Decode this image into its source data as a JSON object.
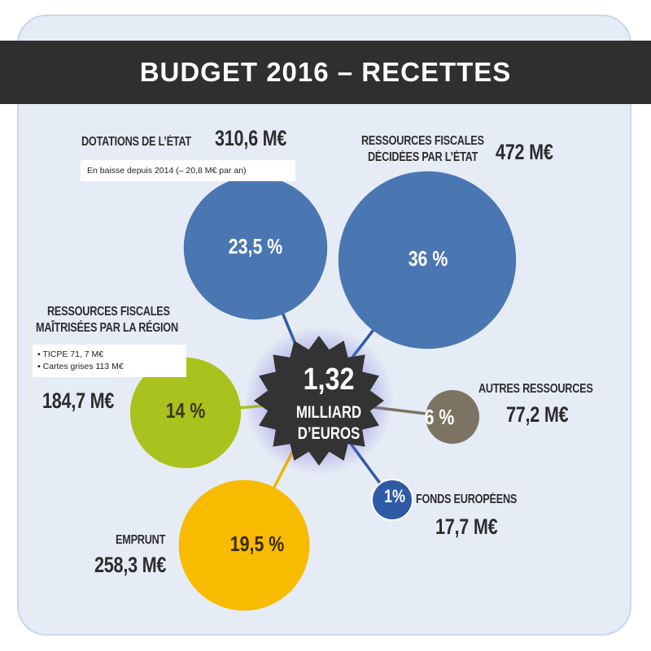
{
  "title": "BUDGET 2016 – RECETTES",
  "center": {
    "value": "1,32",
    "line1": "MILLIARD",
    "line2": "D’EUROS"
  },
  "colors": {
    "blue": "#4a76b2",
    "green": "#aac21d",
    "yellow": "#f9bb00",
    "grey": "#7d7364",
    "dark_blue": "#2e5aa6",
    "star": "#333333",
    "connector_blue": "#2e5aa6",
    "connector_green": "#aac21d",
    "connector_yellow": "#f2b400",
    "connector_grey": "#7d7364"
  },
  "chart_data": {
    "type": "bubble",
    "title": "BUDGET 2016 – RECETTES",
    "total": "1,32 MILLIARD D’EUROS",
    "items": [
      {
        "id": "dotations",
        "label": "DOTATIONS DE L’ÉTAT",
        "amount": "310,6 M€",
        "percent": "23,5 %",
        "value": 23.5,
        "note": [
          "En baisse depuis 2014 (– 20,8 M€ par an)"
        ],
        "color": "#4a76b2"
      },
      {
        "id": "ressources_etat",
        "label": [
          "RESSOURCES FISCALES",
          "DÉCIDÉES PAR L’ÉTAT"
        ],
        "amount": "472 M€",
        "percent": "36 %",
        "value": 36,
        "color": "#4a76b2"
      },
      {
        "id": "ressources_region",
        "label": [
          "RESSOURCES FISCALES",
          "MAÎTRISÉES PAR LA RÉGION"
        ],
        "amount": "184,7 M€",
        "percent": "14 %",
        "value": 14,
        "note": [
          "TICPE 71, 7 M€",
          "Cartes grises 113 M€"
        ],
        "color": "#aac21d"
      },
      {
        "id": "autres",
        "label": "AUTRES RESSOURCES",
        "amount": "77,2 M€",
        "percent": "6 %",
        "value": 6,
        "color": "#7d7364"
      },
      {
        "id": "fonds",
        "label": "FONDS EUROPÉENS",
        "amount": "17,7 M€",
        "percent": "1%",
        "value": 1,
        "color": "#2e5aa6"
      },
      {
        "id": "emprunt",
        "label": "EMPRUNT",
        "amount": "258,3 M€",
        "percent": "19,5 %",
        "value": 19.5,
        "color": "#f9bb00"
      }
    ]
  }
}
